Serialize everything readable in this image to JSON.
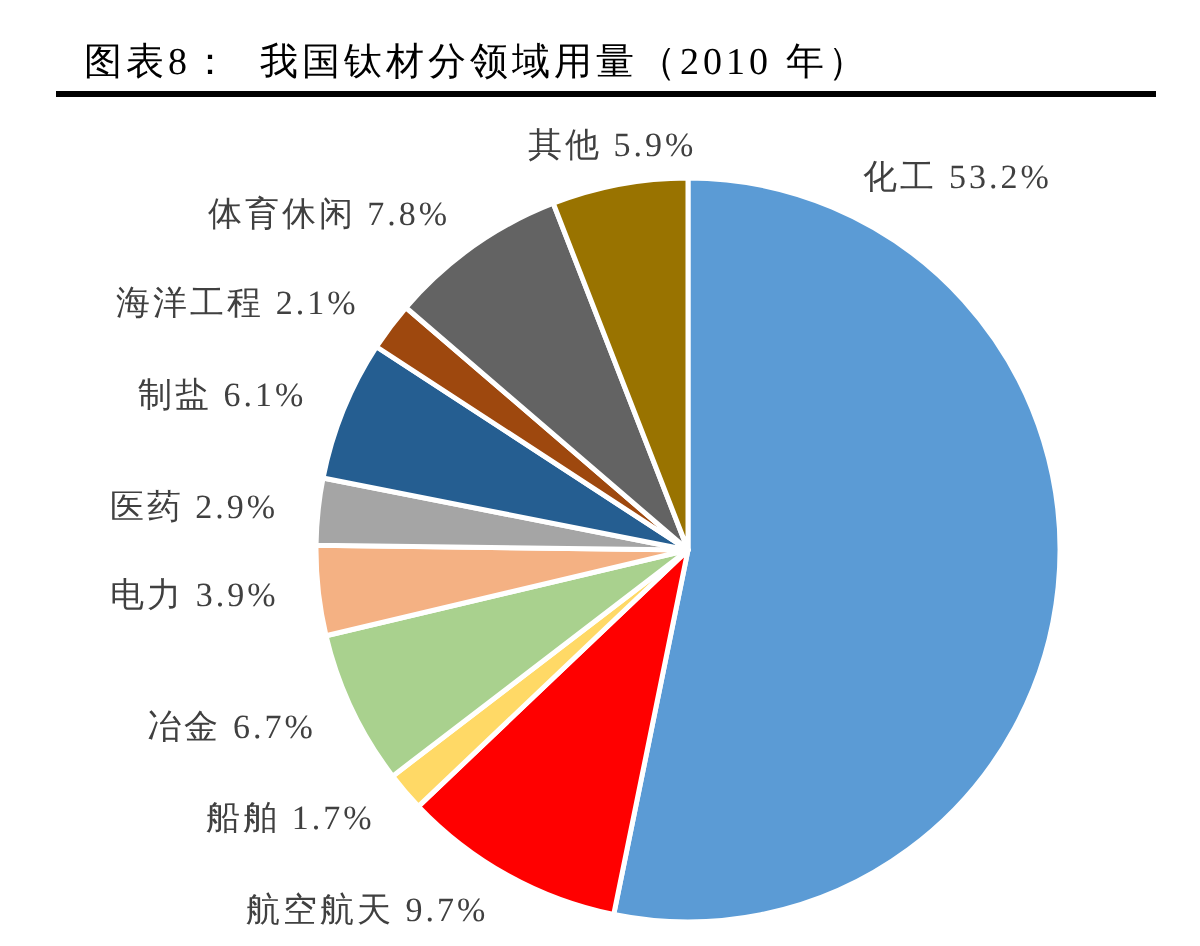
{
  "chart_data": {
    "type": "pie",
    "title": "图表8：  我国钛材分领域用量（2010 年）",
    "categories": [
      "化工",
      "航空航天",
      "船舶",
      "冶金",
      "电力",
      "医药",
      "制盐",
      "海洋工程",
      "体育休闲",
      "其他"
    ],
    "values": [
      53.2,
      9.7,
      1.7,
      6.7,
      3.9,
      2.9,
      6.1,
      2.1,
      7.8,
      5.9
    ],
    "value_labels": [
      "53.2%",
      "9.7%",
      "1.7%",
      "6.7%",
      "3.9%",
      "2.9%",
      "6.1%",
      "2.1%",
      "7.8%",
      "5.9%"
    ],
    "colors": [
      "#5b9bd5",
      "#ff0000",
      "#ffd966",
      "#a9d18e",
      "#f4b183",
      "#a5a5a5",
      "#255e91",
      "#9e480e",
      "#636363",
      "#997300"
    ]
  }
}
